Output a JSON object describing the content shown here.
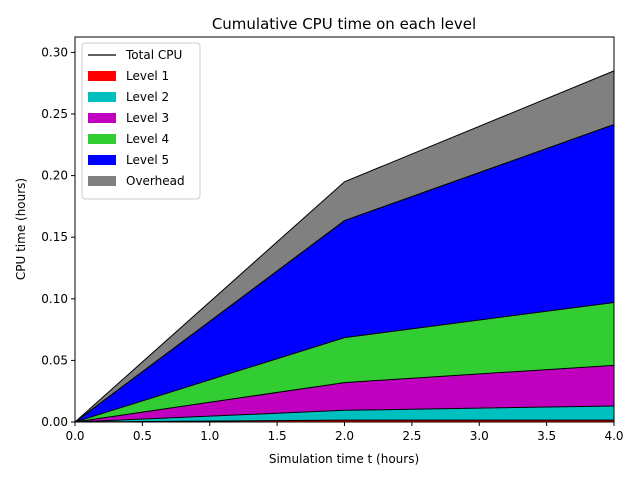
{
  "chart_data": {
    "type": "area",
    "title": "Cumulative CPU time on each level",
    "xlabel": "Simulation time t (hours)",
    "ylabel": "CPU time (hours)",
    "xlim": [
      0,
      4
    ],
    "ylim": [
      0,
      0.3125
    ],
    "xticks": [
      "0.0",
      "0.5",
      "1.0",
      "1.5",
      "2.0",
      "2.5",
      "3.0",
      "3.5",
      "4.0"
    ],
    "yticks": [
      "0.00",
      "0.05",
      "0.10",
      "0.15",
      "0.20",
      "0.25",
      "0.30"
    ],
    "stacked": true,
    "grid": false,
    "legend_position": "top-left",
    "x": [
      0,
      2,
      4
    ],
    "total_line": {
      "name": "Total CPU",
      "color": "#000000"
    },
    "series": [
      {
        "name": "Level 1",
        "color": "#ff0000",
        "values": [
          0,
          0.0015,
          0.0015
        ]
      },
      {
        "name": "Level 2",
        "color": "#00bfbf",
        "values": [
          0,
          0.008,
          0.0115
        ]
      },
      {
        "name": "Level 3",
        "color": "#bf00bf",
        "values": [
          0,
          0.0225,
          0.033
        ]
      },
      {
        "name": "Level 4",
        "color": "#32cd32",
        "values": [
          0,
          0.0365,
          0.051
        ]
      },
      {
        "name": "Level 5",
        "color": "#0000ff",
        "values": [
          0,
          0.095,
          0.1445
        ]
      },
      {
        "name": "Overhead",
        "color": "#808080",
        "values": [
          0,
          0.0315,
          0.0435
        ]
      }
    ]
  }
}
